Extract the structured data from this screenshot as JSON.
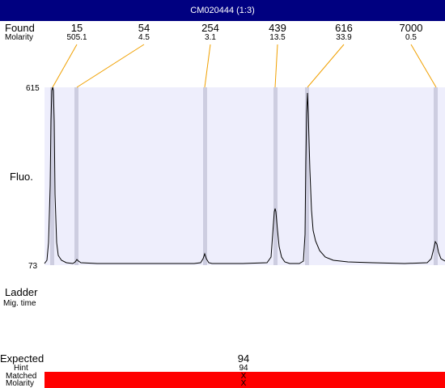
{
  "window": {
    "title": "CM020444 (1:3)"
  },
  "labels": {
    "found": "Found",
    "molarity": "Molarity",
    "fluo": "Fluo.",
    "ladder": "Ladder",
    "mig_time": "Mig. time",
    "expected": "Expected",
    "hint": "Hint",
    "matched": "Matched",
    "molarity_bottom": "Molarity"
  },
  "axis": {
    "y_max_label": "615",
    "y_min_label": "73"
  },
  "peaks": [
    {
      "found": "15",
      "molarity": "505.1"
    },
    {
      "found": "54",
      "molarity": "4.5"
    },
    {
      "found": "254",
      "molarity": "3.1"
    },
    {
      "found": "439",
      "molarity": "13.5"
    },
    {
      "found": "616",
      "molarity": "33.9"
    },
    {
      "found": "7000",
      "molarity": "0.5"
    }
  ],
  "expected": {
    "value": "94",
    "hint": "94",
    "matched": "X",
    "molarity": "X"
  },
  "colors": {
    "title_bg": "#000080",
    "plot_bg": "#eeeefc",
    "marker": "#cdcde0",
    "connector": "#f0a000",
    "trace": "#000000",
    "matched_bar": "#ff0000"
  }
}
